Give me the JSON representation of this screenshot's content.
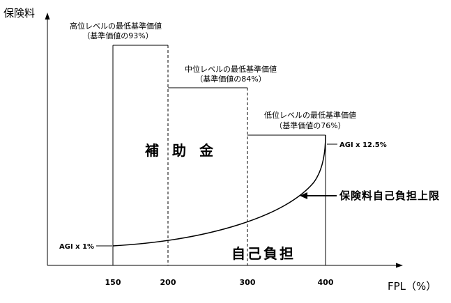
{
  "y_axis": {
    "label": "保険料"
  },
  "x_axis": {
    "label": "FPL（%）",
    "ticks": [
      "150",
      "200",
      "300",
      "400"
    ]
  },
  "levels": [
    {
      "title": "高位レベルの最低基準価値",
      "subtitle": "（基準価値の93%）"
    },
    {
      "title": "中位レベルの最低基準価値",
      "subtitle": "（基準価値の84%）"
    },
    {
      "title": "低位レベルの最低基準価値",
      "subtitle": "（基準価値の76%）"
    }
  ],
  "regions": {
    "subsidy": "補 助 金",
    "self_pay": "自己負担"
  },
  "curve": {
    "start_label": "AGI x 1%",
    "end_label": "AGI x 12.5%",
    "name": "保険料自己負担上限"
  },
  "colors": {
    "line": "#000000",
    "background": "#ffffff"
  }
}
